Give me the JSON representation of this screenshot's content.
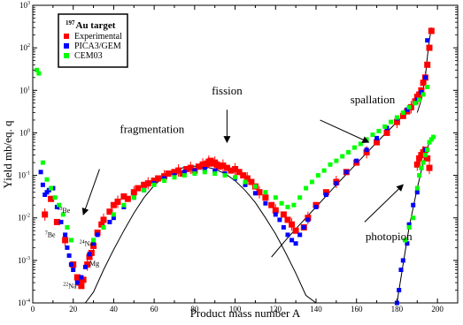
{
  "chart_data": {
    "type": "scatter",
    "title": "",
    "xlabel": "Product mass number  A",
    "ylabel": "Yield     mb/eq. q",
    "xlim": [
      0,
      210
    ],
    "ylim": [
      0.0001,
      1000
    ],
    "yscale": "log",
    "grid": false,
    "legend_position": "top-left",
    "x_ticks": [
      "0",
      "20",
      "40",
      "60",
      "80",
      "100",
      "120",
      "140",
      "160",
      "180",
      "200"
    ],
    "y_ticks": [
      {
        "base": "10",
        "exp": "-4"
      },
      {
        "base": "10",
        "exp": "-3"
      },
      {
        "base": "10",
        "exp": "-2"
      },
      {
        "base": "10",
        "exp": "-1"
      },
      {
        "base": "10",
        "exp": "0"
      },
      {
        "base": "10",
        "exp": "1"
      },
      {
        "base": "10",
        "exp": "2"
      },
      {
        "base": "10",
        "exp": "3"
      }
    ],
    "legend": {
      "title_sup": "197",
      "title_main": "Au target"
    },
    "annotations": [
      {
        "text": "fission",
        "x": 96,
        "y": 8,
        "arrow_from": [
          96,
          3.5
        ],
        "arrow_to": [
          96,
          0.6
        ]
      },
      {
        "text": "spallation",
        "x": 168,
        "y": 5,
        "arrow_from": [
          142,
          2.0
        ],
        "arrow_to": [
          166,
          0.6
        ]
      },
      {
        "text": "fragmentation",
        "x": 59,
        "y": 1.0,
        "arrow_from": [
          33,
          0.14
        ],
        "arrow_to": [
          25,
          0.012
        ]
      },
      {
        "text": "photopion",
        "x": 176,
        "y": 0.003,
        "arrow_from": [
          164,
          0.008
        ],
        "arrow_to": [
          183,
          0.06
        ]
      }
    ],
    "isotope_labels": [
      {
        "mass": "10",
        "element": "Be",
        "x": 12,
        "y": 0.013
      },
      {
        "mass": "7",
        "element": "Be",
        "x": 6,
        "y": 0.0035
      },
      {
        "mass": "24",
        "element": "Na",
        "x": 23,
        "y": 0.0022
      },
      {
        "mass": "",
        "element": "Mg",
        "x": 28,
        "y": 0.00075
      },
      {
        "mass": "22",
        "element": "Na",
        "x": 15,
        "y": 0.00022
      }
    ],
    "fit_curves": [
      {
        "name": "fission-gaussian",
        "x": [
          26,
          30,
          35,
          40,
          45,
          50,
          55,
          60,
          65,
          70,
          75,
          80,
          85,
          90,
          95,
          100,
          105,
          110,
          115,
          120,
          125,
          130,
          135,
          140,
          145,
          150,
          155,
          160
        ],
        "y": [
          8e-05,
          0.00018,
          0.0006,
          0.0018,
          0.005,
          0.013,
          0.03,
          0.058,
          0.095,
          0.13,
          0.155,
          0.165,
          0.16,
          0.14,
          0.11,
          0.075,
          0.044,
          0.023,
          0.01,
          0.0042,
          0.0015,
          0.0005,
          0.00015,
          5e-05,
          1.5e-05,
          5e-06,
          1.5e-06,
          4e-07
        ]
      },
      {
        "name": "spallation-exponential",
        "x": [
          118,
          125,
          130,
          140,
          150,
          160,
          170,
          180,
          185,
          190,
          193
        ],
        "y": [
          0.0012,
          0.003,
          0.0055,
          0.018,
          0.06,
          0.19,
          0.6,
          1.8,
          3.2,
          6,
          8
        ]
      },
      {
        "name": "near-target",
        "x": [
          190,
          192,
          194,
          195,
          196,
          197
        ],
        "y": [
          3,
          6,
          20,
          60,
          150,
          300
        ]
      },
      {
        "name": "photopion-fit",
        "x": [
          180,
          183,
          186,
          190,
          193,
          196
        ],
        "y": [
          0.0001,
          0.0008,
          0.006,
          0.05,
          0.2,
          0.6
        ]
      }
    ],
    "series": [
      {
        "name": "Experimental",
        "color": "#ff0000",
        "x": [
          6,
          9,
          12,
          16,
          20,
          22,
          23,
          24,
          25,
          27,
          28,
          29,
          30,
          32,
          34,
          35,
          38,
          40,
          42,
          45,
          47,
          50,
          52,
          55,
          57,
          60,
          62,
          65,
          67,
          70,
          72,
          74,
          76,
          78,
          80,
          82,
          84,
          85,
          86,
          87,
          88,
          89,
          90,
          91,
          92,
          94,
          96,
          98,
          100,
          102,
          104,
          106,
          108,
          110,
          112,
          115,
          118,
          120,
          124,
          126,
          128,
          130,
          134,
          136,
          140,
          145,
          150,
          155,
          160,
          165,
          170,
          175,
          180,
          183,
          185,
          187,
          189,
          190,
          191,
          192,
          193,
          194,
          195,
          196,
          190,
          191,
          192,
          193,
          194,
          195,
          196,
          197
        ],
        "y": [
          0.012,
          0.028,
          0.008,
          0.003,
          0.0008,
          0.0004,
          0.0003,
          0.00025,
          0.00035,
          0.0008,
          0.0012,
          0.0015,
          0.0022,
          0.0045,
          0.007,
          0.009,
          0.014,
          0.02,
          0.024,
          0.032,
          0.028,
          0.04,
          0.05,
          0.06,
          0.065,
          0.075,
          0.085,
          0.095,
          0.11,
          0.12,
          0.13,
          0.11,
          0.14,
          0.15,
          0.13,
          0.16,
          0.18,
          0.17,
          0.19,
          0.21,
          0.22,
          0.19,
          0.2,
          0.18,
          0.16,
          0.17,
          0.15,
          0.13,
          0.14,
          0.12,
          0.1,
          0.085,
          0.07,
          0.055,
          0.04,
          0.03,
          0.02,
          0.015,
          0.012,
          0.009,
          0.007,
          0.005,
          0.006,
          0.01,
          0.02,
          0.04,
          0.07,
          0.12,
          0.2,
          0.35,
          0.6,
          1.0,
          1.8,
          2.5,
          3.2,
          4.0,
          5.5,
          7,
          8,
          10,
          15,
          20,
          40,
          100,
          0.18,
          0.25,
          0.3,
          0.35,
          0.4,
          0.25,
          0.15,
          250
        ]
      },
      {
        "name": "PICA3/GEM",
        "color": "#0000ff",
        "x": [
          4,
          5,
          6,
          7,
          8,
          10,
          12,
          14,
          16,
          17,
          18,
          19,
          20,
          22,
          24,
          26,
          28,
          30,
          32,
          35,
          38,
          40,
          45,
          50,
          55,
          60,
          65,
          70,
          75,
          80,
          85,
          90,
          95,
          100,
          105,
          110,
          115,
          120,
          122,
          124,
          126,
          128,
          130,
          132,
          134,
          136,
          140,
          145,
          150,
          155,
          160,
          165,
          170,
          175,
          180,
          185,
          190,
          192,
          194,
          195,
          180,
          181,
          182,
          183,
          185,
          186,
          188,
          190,
          192,
          194
        ],
        "y": [
          0.12,
          0.06,
          0.035,
          0.04,
          0.045,
          0.05,
          0.018,
          0.008,
          0.004,
          0.002,
          0.0013,
          0.0008,
          0.0006,
          0.0003,
          0.0004,
          0.0007,
          0.0014,
          0.0025,
          0.004,
          0.006,
          0.008,
          0.01,
          0.018,
          0.03,
          0.045,
          0.065,
          0.085,
          0.1,
          0.12,
          0.13,
          0.14,
          0.13,
          0.11,
          0.085,
          0.06,
          0.038,
          0.022,
          0.012,
          0.009,
          0.006,
          0.004,
          0.003,
          0.0025,
          0.004,
          0.006,
          0.009,
          0.018,
          0.035,
          0.065,
          0.12,
          0.22,
          0.4,
          0.75,
          1.3,
          2.2,
          3.5,
          6,
          9,
          20,
          150,
          0.0001,
          0.0002,
          0.0006,
          0.001,
          0.0025,
          0.007,
          0.02,
          0.04,
          0.15,
          0.4
        ]
      },
      {
        "name": "CEM03",
        "color": "#00ff00",
        "x": [
          2,
          3,
          5,
          7,
          9,
          11,
          13,
          15,
          17,
          19,
          30,
          35,
          40,
          45,
          50,
          55,
          60,
          65,
          70,
          75,
          80,
          85,
          90,
          95,
          100,
          105,
          110,
          115,
          120,
          123,
          126,
          129,
          132,
          135,
          138,
          141,
          144,
          147,
          150,
          153,
          156,
          159,
          162,
          165,
          168,
          171,
          174,
          177,
          180,
          183,
          186,
          189,
          191,
          193,
          195,
          184,
          186,
          188,
          190,
          191,
          192,
          193,
          194,
          195,
          196,
          197,
          198
        ],
        "y": [
          30,
          25,
          0.2,
          0.08,
          0.05,
          0.03,
          0.02,
          0.012,
          0.006,
          0.003,
          0.003,
          0.006,
          0.012,
          0.02,
          0.03,
          0.045,
          0.06,
          0.075,
          0.09,
          0.1,
          0.11,
          0.12,
          0.11,
          0.1,
          0.09,
          0.07,
          0.055,
          0.04,
          0.03,
          0.022,
          0.018,
          0.02,
          0.03,
          0.05,
          0.07,
          0.1,
          0.13,
          0.18,
          0.22,
          0.28,
          0.35,
          0.45,
          0.55,
          0.7,
          0.9,
          1.1,
          1.4,
          1.8,
          2.3,
          3,
          4,
          5,
          6,
          8,
          12,
          0.003,
          0.006,
          0.01,
          0.05,
          0.1,
          0.15,
          0.2,
          0.3,
          0.4,
          0.6,
          0.7,
          0.8
        ]
      }
    ]
  }
}
